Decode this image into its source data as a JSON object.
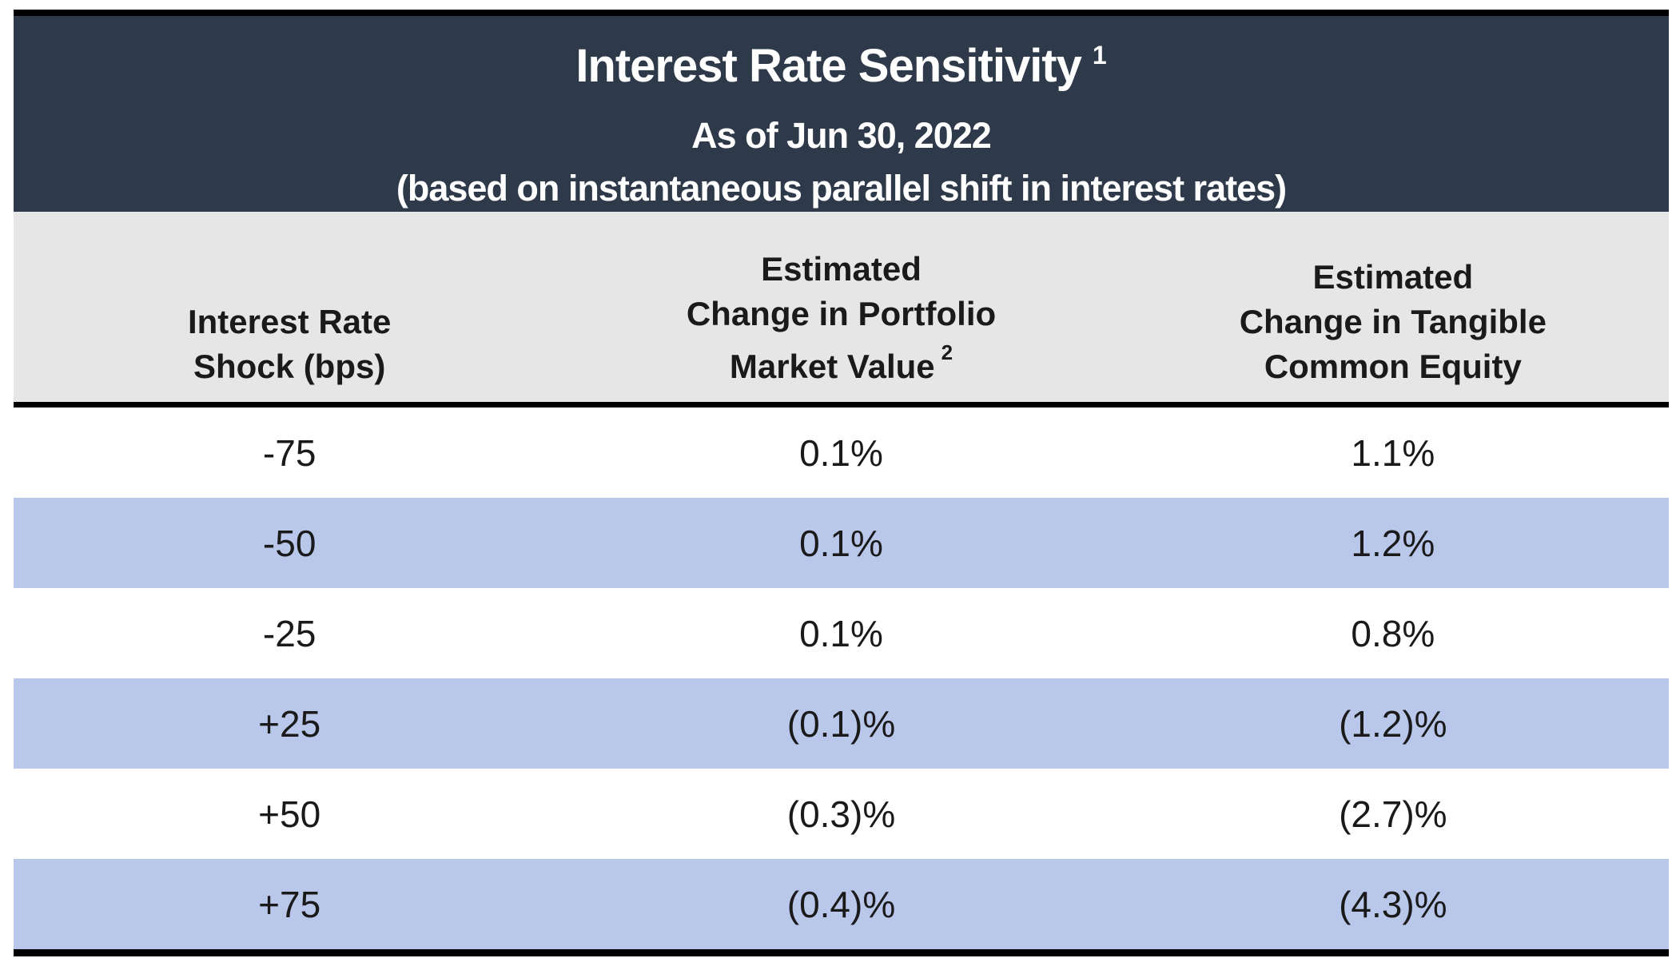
{
  "table": {
    "title": "Interest Rate Sensitivity",
    "title_superscript": "1",
    "subtitle_date": "As of Jun 30, 2022",
    "subtitle_note": "(based on instantaneous parallel shift in interest rates)",
    "columns": [
      {
        "line1": "Interest Rate",
        "line2": "Shock (bps)",
        "line3": "",
        "sup": ""
      },
      {
        "line1": "Estimated",
        "line2": "Change in Portfolio",
        "line3": "Market Value",
        "sup": "2"
      },
      {
        "line1": "Estimated",
        "line2": "Change in Tangible",
        "line3": "Common Equity",
        "sup": ""
      }
    ],
    "rows": [
      {
        "shock": "-75",
        "portfolio": "0.1%",
        "tce": "1.1%"
      },
      {
        "shock": "-50",
        "portfolio": "0.1%",
        "tce": "1.2%"
      },
      {
        "shock": "-25",
        "portfolio": "0.1%",
        "tce": "0.8%"
      },
      {
        "shock": "+25",
        "portfolio": "(0.1)%",
        "tce": "(1.2)%"
      },
      {
        "shock": "+50",
        "portfolio": "(0.3)%",
        "tce": "(2.7)%"
      },
      {
        "shock": "+75",
        "portfolio": "(0.4)%",
        "tce": "(4.3)%"
      }
    ],
    "colors": {
      "header_bg": "#2e3a4a",
      "header_text": "#ffffff",
      "colheader_bg": "#e6e6e6",
      "row_bg": "#ffffff",
      "row_alt_bg": "#b9c8ea",
      "rule": "#000000",
      "text": "#1a1a1a"
    }
  },
  "chart_data": {
    "type": "table",
    "title": "Interest Rate Sensitivity",
    "subtitle": "As of Jun 30, 2022 (based on instantaneous parallel shift in interest rates)",
    "columns": [
      "Interest Rate Shock (bps)",
      "Estimated Change in Portfolio Market Value",
      "Estimated Change in Tangible Common Equity"
    ],
    "rows": [
      [
        "-75",
        "0.1%",
        "1.1%"
      ],
      [
        "-50",
        "0.1%",
        "1.2%"
      ],
      [
        "-25",
        "0.1%",
        "0.8%"
      ],
      [
        "+25",
        "(0.1)%",
        "(1.2)%"
      ],
      [
        "+50",
        "(0.3)%",
        "(2.7)%"
      ],
      [
        "+75",
        "(0.4)%",
        "(4.3)%"
      ]
    ],
    "numeric_values": {
      "shock_bps": [
        -75,
        -50,
        -25,
        25,
        50,
        75
      ],
      "portfolio_market_value_pct": [
        0.1,
        0.1,
        0.1,
        -0.1,
        -0.3,
        -0.4
      ],
      "tangible_common_equity_pct": [
        1.1,
        1.2,
        0.8,
        -1.2,
        -2.7,
        -4.3
      ]
    },
    "footnote_markers": [
      "1",
      "2"
    ]
  }
}
